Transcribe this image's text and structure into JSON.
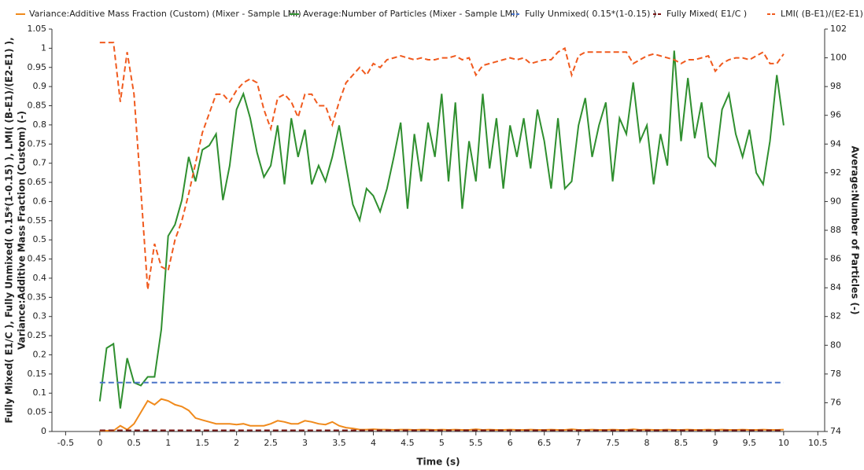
{
  "chart_data": {
    "type": "line",
    "xlabel": "Time (s)",
    "ylabel": [
      "Fully Mixed( E1/C ), Fully Unmixed( 0.15*(1-0.15) ), LMI( (B-E1)/(E2-E1) ),",
      "Variance:Additive Mass Fraction (Custom) (-)"
    ],
    "y2label": "Average:Number of Particles (-)",
    "xlim": [
      -0.7,
      10.6
    ],
    "xticks": [
      -0.5,
      0,
      0.5,
      1,
      1.5,
      2,
      2.5,
      3,
      3.5,
      4,
      4.5,
      5,
      5.5,
      6,
      6.5,
      7,
      7.5,
      8,
      8.5,
      9,
      9.5,
      10,
      10.5
    ],
    "ylim": [
      0,
      1.05
    ],
    "yticks": [
      0,
      0.05,
      0.1,
      0.15,
      0.2,
      0.25,
      0.3,
      0.35,
      0.4,
      0.45,
      0.5,
      0.55,
      0.6,
      0.65,
      0.7,
      0.75,
      0.8,
      0.85,
      0.9,
      0.95,
      1,
      1.05
    ],
    "y2lim": [
      74,
      102
    ],
    "y2ticks": [
      74,
      76,
      78,
      80,
      82,
      84,
      86,
      88,
      90,
      92,
      94,
      96,
      98,
      100,
      102
    ],
    "x": [
      0,
      0.1,
      0.2,
      0.3,
      0.4,
      0.5,
      0.6,
      0.7,
      0.8,
      0.9,
      1,
      1.1,
      1.2,
      1.3,
      1.4,
      1.5,
      1.6,
      1.7,
      1.8,
      1.9,
      2,
      2.1,
      2.2,
      2.3,
      2.4,
      2.5,
      2.6,
      2.7,
      2.8,
      2.9,
      3,
      3.1,
      3.2,
      3.3,
      3.4,
      3.5,
      3.6,
      3.7,
      3.8,
      3.9,
      4,
      4.1,
      4.2,
      4.3,
      4.4,
      4.5,
      4.6,
      4.7,
      4.8,
      4.9,
      5,
      5.1,
      5.2,
      5.3,
      5.4,
      5.5,
      5.6,
      5.7,
      5.8,
      5.9,
      6,
      6.1,
      6.2,
      6.3,
      6.4,
      6.5,
      6.6,
      6.7,
      6.8,
      6.9,
      7,
      7.1,
      7.2,
      7.3,
      7.4,
      7.5,
      7.6,
      7.7,
      7.8,
      7.9,
      8,
      8.1,
      8.2,
      8.3,
      8.4,
      8.5,
      8.6,
      8.7,
      8.8,
      8.9,
      9,
      9.1,
      9.2,
      9.3,
      9.4,
      9.5,
      9.6,
      9.7,
      9.8,
      9.9,
      10
    ],
    "series": [
      {
        "name": "Variance:Additive Mass Fraction (Custom) (Mixer - Sample LMI)",
        "color": "#f08a1c",
        "dashed": false,
        "values": [
          0.002,
          0.002,
          0.002,
          0.015,
          0.005,
          0.02,
          0.05,
          0.08,
          0.07,
          0.085,
          0.08,
          0.07,
          0.065,
          0.055,
          0.035,
          0.03,
          0.025,
          0.02,
          0.02,
          0.02,
          0.018,
          0.02,
          0.015,
          0.015,
          0.015,
          0.02,
          0.028,
          0.025,
          0.02,
          0.02,
          0.028,
          0.025,
          0.02,
          0.018,
          0.025,
          0.015,
          0.01,
          0.008,
          0.005,
          0.005,
          0.006,
          0.005,
          0.005,
          0.004,
          0.005,
          0.005,
          0.004,
          0.005,
          0.005,
          0.004,
          0.005,
          0.004,
          0.005,
          0.004,
          0.004,
          0.006,
          0.004,
          0.005,
          0.004,
          0.004,
          0.005,
          0.004,
          0.004,
          0.005,
          0.004,
          0.004,
          0.005,
          0.004,
          0.004,
          0.006,
          0.004,
          0.004,
          0.005,
          0.004,
          0.004,
          0.005,
          0.004,
          0.004,
          0.006,
          0.004,
          0.005,
          0.004,
          0.004,
          0.005,
          0.004,
          0.004,
          0.005,
          0.004,
          0.004,
          0.005,
          0.004,
          0.005,
          0.004,
          0.004,
          0.005,
          0.004,
          0.004,
          0.005,
          0.004,
          0.004,
          0.005
        ]
      },
      {
        "name": "Average:Number of Particles (Mixer - Sample LMI)",
        "color": "#2f8f2f",
        "dashed": false,
        "axis": "y2",
        "values": [
          76.1,
          79.8,
          80.1,
          75.6,
          79.1,
          77.4,
          77.2,
          77.8,
          77.8,
          81.1,
          87.6,
          88.4,
          90.1,
          93.1,
          91.4,
          93.6,
          93.9,
          94.7,
          90.1,
          92.5,
          96.4,
          97.5,
          95.8,
          93.4,
          91.7,
          92.5,
          95.3,
          91.2,
          95.8,
          93.1,
          95.0,
          91.2,
          92.5,
          91.4,
          93.1,
          95.3,
          92.5,
          89.8,
          88.7,
          90.9,
          90.4,
          89.3,
          90.9,
          93.1,
          95.5,
          89.5,
          94.7,
          91.4,
          95.5,
          93.1,
          97.5,
          91.4,
          96.9,
          89.5,
          94.2,
          91.4,
          97.5,
          92.3,
          95.8,
          90.9,
          95.3,
          93.1,
          95.8,
          92.3,
          96.4,
          94.2,
          90.9,
          95.8,
          90.9,
          91.4,
          95.3,
          97.2,
          93.1,
          95.3,
          96.9,
          91.4,
          95.8,
          94.7,
          98.3,
          94.2,
          95.3,
          91.2,
          94.7,
          92.5,
          100.5,
          94.2,
          98.6,
          94.4,
          96.9,
          93.1,
          92.5,
          96.4,
          97.5,
          94.7,
          93.1,
          95.0,
          92.0,
          91.2,
          94.2,
          98.8,
          95.3
        ]
      },
      {
        "name": "Fully Unmixed( 0.15*(1-0.15) )",
        "color": "#4a74c8",
        "dashed": true,
        "x": [
          0,
          10
        ],
        "values": [
          0.1275,
          0.1275
        ]
      },
      {
        "name": "Fully Mixed( E1/C )",
        "color": "#7a1616",
        "dashed": true,
        "x": [
          0,
          10
        ],
        "values": [
          0.003,
          0.003
        ]
      },
      {
        "name": "LMI( (B-E1)/(E2-E1) )",
        "color": "#f05a1e",
        "dashed": true,
        "values": [
          1.015,
          1.015,
          1.015,
          0.86,
          0.99,
          0.88,
          0.63,
          0.37,
          0.49,
          0.43,
          0.42,
          0.5,
          0.55,
          0.62,
          0.7,
          0.78,
          0.83,
          0.88,
          0.88,
          0.86,
          0.89,
          0.91,
          0.92,
          0.91,
          0.84,
          0.79,
          0.87,
          0.88,
          0.86,
          0.82,
          0.88,
          0.88,
          0.85,
          0.85,
          0.8,
          0.86,
          0.91,
          0.93,
          0.95,
          0.93,
          0.96,
          0.95,
          0.97,
          0.975,
          0.98,
          0.975,
          0.97,
          0.975,
          0.97,
          0.97,
          0.975,
          0.975,
          0.98,
          0.97,
          0.975,
          0.93,
          0.955,
          0.96,
          0.965,
          0.97,
          0.975,
          0.97,
          0.975,
          0.96,
          0.965,
          0.97,
          0.97,
          0.99,
          1.0,
          0.93,
          0.98,
          0.99,
          0.99,
          0.99,
          0.99,
          0.99,
          0.99,
          0.99,
          0.96,
          0.97,
          0.98,
          0.985,
          0.98,
          0.975,
          0.97,
          0.96,
          0.97,
          0.97,
          0.975,
          0.98,
          0.94,
          0.96,
          0.97,
          0.975,
          0.975,
          0.97,
          0.98,
          0.99,
          0.96,
          0.96,
          0.985
        ]
      }
    ]
  }
}
